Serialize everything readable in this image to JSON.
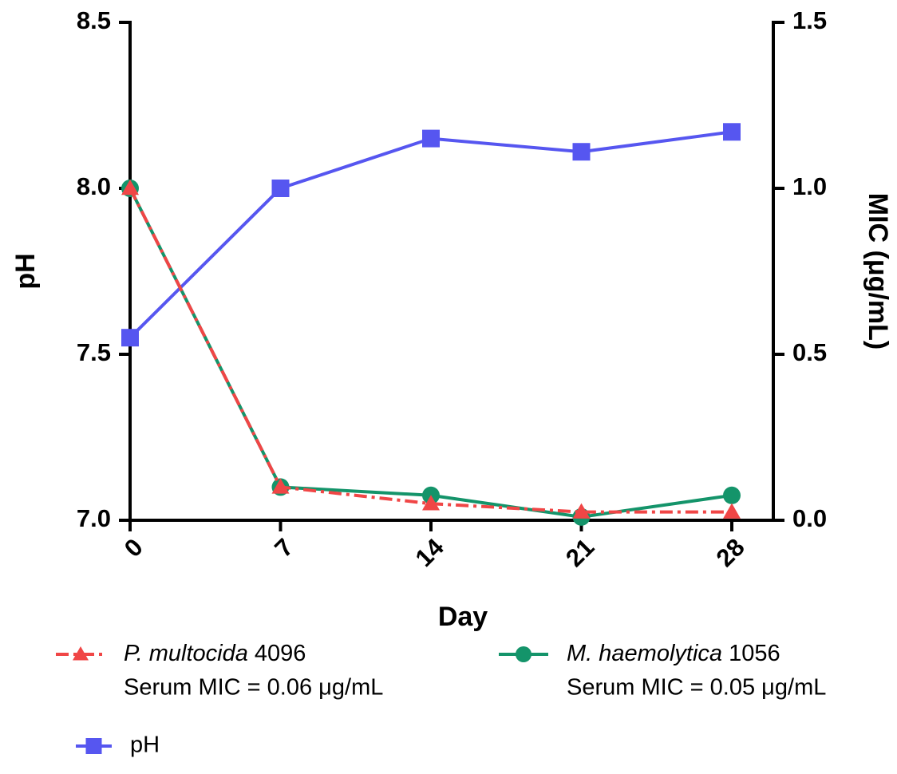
{
  "chart_data": {
    "type": "line",
    "x_label": "Day",
    "y_label": "pH",
    "y2_label": "MIC (μg/mL)",
    "x": [
      0,
      7,
      14,
      21,
      28
    ],
    "xlim": [
      0,
      28
    ],
    "xticks": [
      0,
      7,
      14,
      21,
      28
    ],
    "ylim": [
      7,
      8.5
    ],
    "yticks": [
      {
        "value": 7,
        "label": "7.0"
      },
      {
        "value": 7.5,
        "label": "7.5"
      },
      {
        "value": 8,
        "label": "8.0"
      },
      {
        "value": 8.5,
        "label": "8.5"
      }
    ],
    "y2lim": [
      0,
      1.5
    ],
    "y2ticks": [
      {
        "value": 0,
        "label": "0.0"
      },
      {
        "value": 0.5,
        "label": "0.5"
      },
      {
        "value": 1,
        "label": "1.0"
      },
      {
        "value": 1.5,
        "label": "1.5"
      }
    ],
    "series": [
      {
        "name": "P. multocida 4096",
        "note": "Serum MIC = 0.06 μg/mL",
        "color": "#f04646",
        "axis": "y2",
        "marker": "triangle",
        "dash": "dashdot",
        "values": [
          1.0,
          0.1,
          0.05,
          0.025,
          0.025
        ]
      },
      {
        "name": "M. haemolytica 1056",
        "note": "Serum MIC = 0.05 μg/mL",
        "color": "#14946a",
        "axis": "y2",
        "marker": "circle",
        "dash": "solid",
        "values": [
          1.0,
          0.1,
          0.075,
          0.01,
          0.075
        ]
      },
      {
        "name": "pH",
        "color": "#5656f0",
        "marker": "square",
        "dash": "solid",
        "values": [
          7.55,
          8.0,
          8.15,
          8.11,
          8.17
        ]
      }
    ]
  }
}
